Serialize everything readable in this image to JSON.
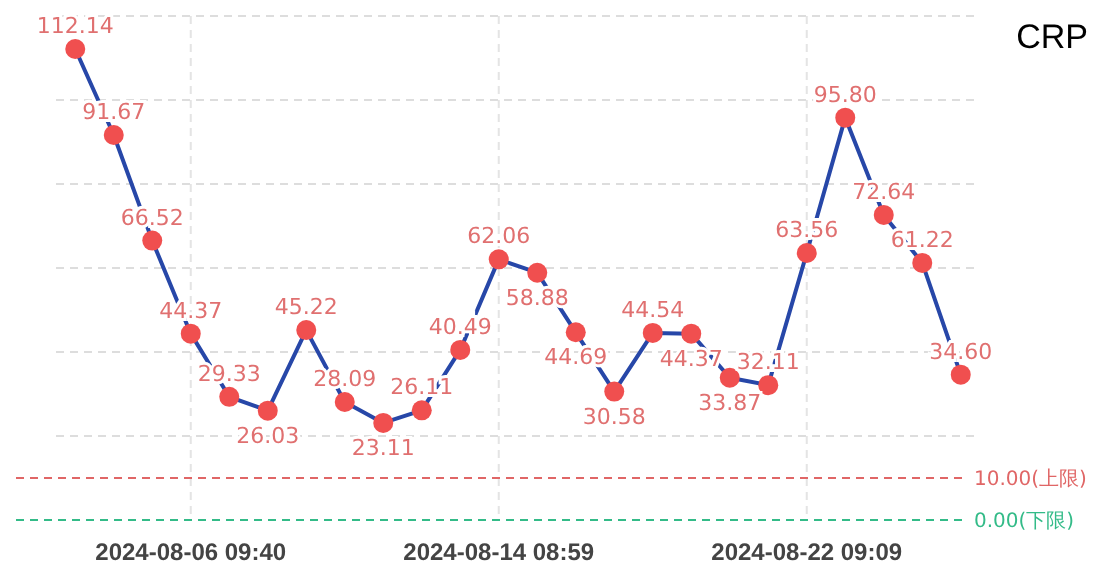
{
  "chart_data": {
    "type": "line",
    "title": "CRP",
    "categories": [
      null,
      null,
      null,
      "2024-08-06 09:40",
      null,
      null,
      null,
      null,
      null,
      null,
      null,
      "2024-08-14 08:59",
      null,
      null,
      null,
      null,
      null,
      null,
      null,
      "2024-08-22 09:09",
      null,
      null,
      null,
      null
    ],
    "series": [
      {
        "color": "#2747a8",
        "values": [
          112.14,
          91.67,
          66.52,
          44.37,
          29.33,
          26.03,
          45.22,
          28.09,
          23.11,
          26.11,
          40.49,
          62.06,
          58.88,
          44.69,
          30.58,
          44.54,
          44.37,
          33.87,
          32.11,
          63.56,
          95.8,
          72.64,
          61.22,
          34.6
        ],
        "value_labels": [
          "112.14",
          "91.67",
          "66.52",
          "44.37",
          "29.33",
          "26.03",
          "45.22",
          "28.09",
          "23.11",
          "26.11",
          "40.49",
          "62.06",
          "58.88",
          "44.69",
          "30.58",
          "44.54",
          "44.37",
          "33.87",
          "32.11",
          "63.56",
          "95.80",
          "72.64",
          "61.22",
          "34.60"
        ]
      }
    ],
    "ylim": [
      0,
      120
    ],
    "yticks": [
      {
        "value": 20,
        "label": null
      },
      {
        "value": 40,
        "label": null
      },
      {
        "value": 60,
        "label": null
      },
      {
        "value": 80,
        "label": null
      },
      {
        "value": 100,
        "label": null
      },
      {
        "value": 120,
        "label": null
      }
    ],
    "tick_labels": "x",
    "grid": true,
    "marker": "circle",
    "line_style": "solid",
    "ref_lines": [
      {
        "axis": "y",
        "value": 10,
        "label": "10.00(上限)",
        "color": "#e06666",
        "line_style": "dashed"
      },
      {
        "axis": "y",
        "value": 0,
        "label": "0.00(下限)",
        "color": "#33bb88",
        "line_style": "dashed"
      }
    ]
  }
}
